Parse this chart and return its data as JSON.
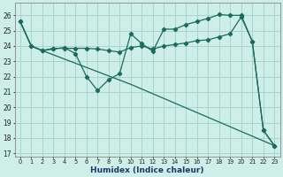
{
  "xlabel": "Humidex (Indice chaleur)",
  "bg_color": "#ceeee8",
  "grid_color": "#aad4cc",
  "line_color": "#1a6b5e",
  "xlim": [
    -0.5,
    23.5
  ],
  "ylim": [
    16.8,
    26.8
  ],
  "yticks": [
    17,
    18,
    19,
    20,
    21,
    22,
    23,
    24,
    25,
    26
  ],
  "xticks": [
    0,
    1,
    2,
    3,
    4,
    5,
    6,
    7,
    8,
    9,
    10,
    11,
    12,
    13,
    14,
    15,
    16,
    17,
    18,
    19,
    20,
    21,
    22,
    23
  ],
  "line1_x": [
    0,
    1,
    2,
    3,
    4,
    5,
    6,
    7,
    8,
    9,
    10,
    11,
    12,
    13,
    14,
    15,
    16,
    17,
    18,
    19,
    20,
    21,
    22,
    23
  ],
  "line1_y": [
    25.6,
    24.0,
    23.7,
    23.8,
    23.9,
    23.5,
    22.0,
    21.1,
    21.8,
    22.2,
    24.8,
    24.15,
    23.65,
    25.1,
    25.1,
    25.4,
    25.6,
    25.8,
    26.05,
    26.0,
    26.0,
    24.3,
    18.5,
    17.5
  ],
  "line1_markers": true,
  "line2_x": [
    0,
    1,
    2,
    3,
    4,
    5,
    6,
    7,
    8,
    9,
    10,
    11,
    12,
    13,
    14,
    15,
    16,
    17,
    18,
    19,
    20,
    21,
    22,
    23
  ],
  "line2_y": [
    25.6,
    24.0,
    23.7,
    23.85,
    23.85,
    23.85,
    23.85,
    23.8,
    23.7,
    23.6,
    23.9,
    24.0,
    23.8,
    24.0,
    24.1,
    24.2,
    24.35,
    24.4,
    24.6,
    24.8,
    25.9,
    24.3,
    18.5,
    17.5
  ],
  "line2_markers": true,
  "line3_x": [
    0,
    1,
    2,
    10,
    23
  ],
  "line3_y": [
    25.6,
    24.0,
    23.7,
    21.5,
    17.5
  ],
  "line3_markers": false
}
